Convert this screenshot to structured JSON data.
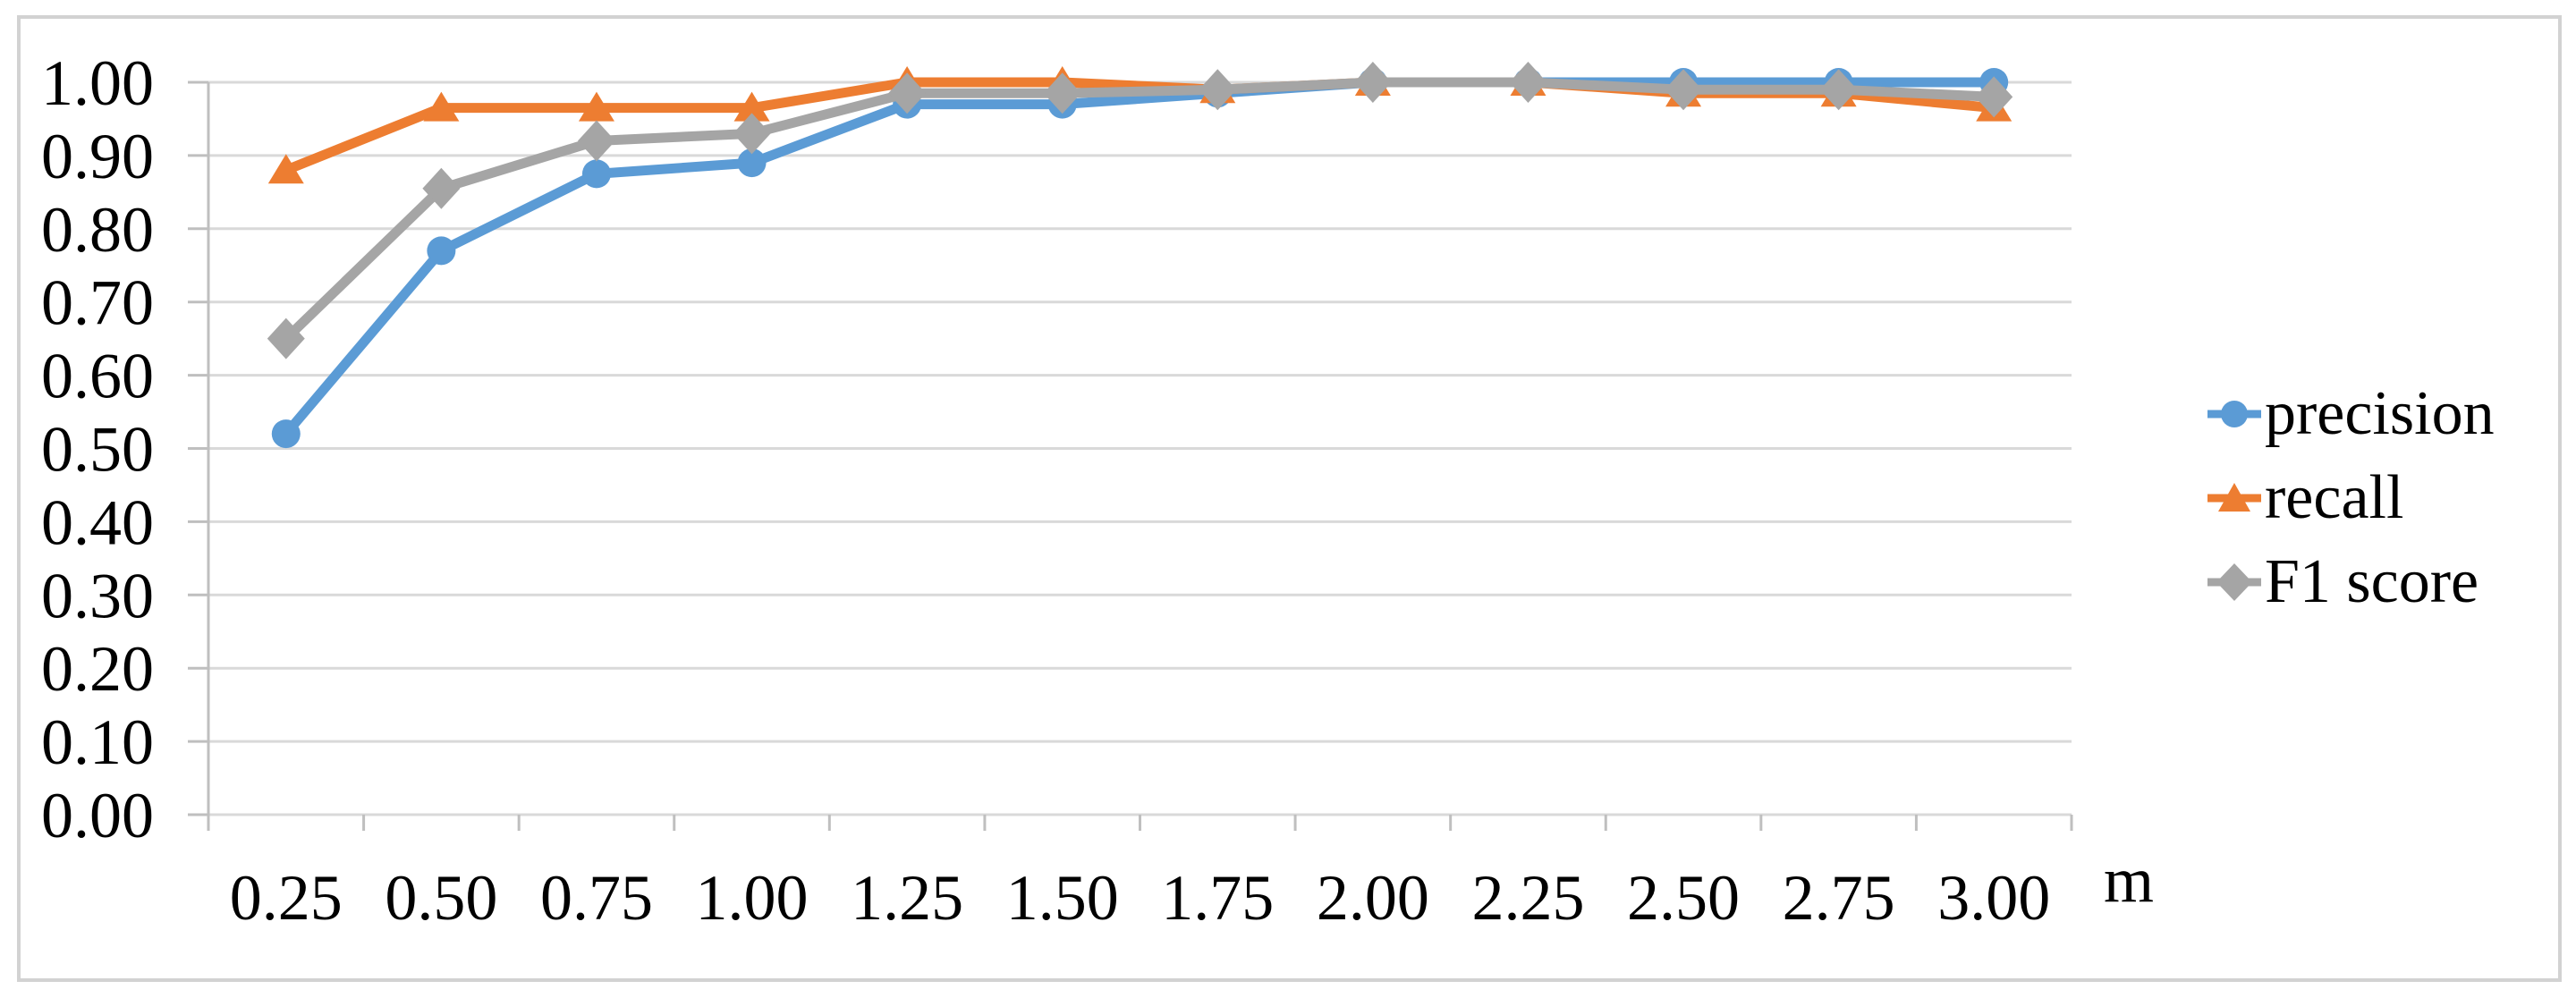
{
  "figure": {
    "background": "#ffffff",
    "border_color": "#d2d2d2"
  },
  "chart_data": {
    "type": "line",
    "title": "",
    "xlabel": "m",
    "ylabel": "",
    "x": [
      0.25,
      0.5,
      0.75,
      1.0,
      1.25,
      1.5,
      1.75,
      2.0,
      2.25,
      2.5,
      2.75,
      3.0
    ],
    "x_tick_labels": [
      "0.25",
      "0.50",
      "0.75",
      "1.00",
      "1.25",
      "1.50",
      "1.75",
      "2.00",
      "2.25",
      "2.50",
      "2.75",
      "3.00"
    ],
    "y_tick_labels": [
      "0.00",
      "0.10",
      "0.20",
      "0.30",
      "0.40",
      "0.50",
      "0.60",
      "0.70",
      "0.80",
      "0.90",
      "1.00"
    ],
    "ylim": [
      0.0,
      1.0
    ],
    "y_tick_step": 0.1,
    "grid": "horizontal",
    "legend_position": "right",
    "axis_color": "#bfbfbf",
    "gridline_color": "#d9d9d9",
    "text_color": "#000000",
    "series": [
      {
        "name": "precision",
        "marker": "circle",
        "color": "#5b9bd5",
        "values": [
          0.52,
          0.77,
          0.875,
          0.89,
          0.97,
          0.97,
          0.985,
          1.0,
          1.0,
          1.0,
          1.0,
          1.0
        ]
      },
      {
        "name": "recall",
        "marker": "triangle",
        "color": "#ed7d31",
        "values": [
          0.88,
          0.965,
          0.965,
          0.965,
          1.0,
          1.0,
          0.99,
          1.0,
          1.0,
          0.985,
          0.985,
          0.965
        ]
      },
      {
        "name": "F1 score",
        "marker": "diamond",
        "color": "#a5a5a5",
        "values": [
          0.65,
          0.855,
          0.92,
          0.93,
          0.985,
          0.985,
          0.99,
          1.0,
          1.0,
          0.99,
          0.99,
          0.98
        ]
      }
    ]
  }
}
